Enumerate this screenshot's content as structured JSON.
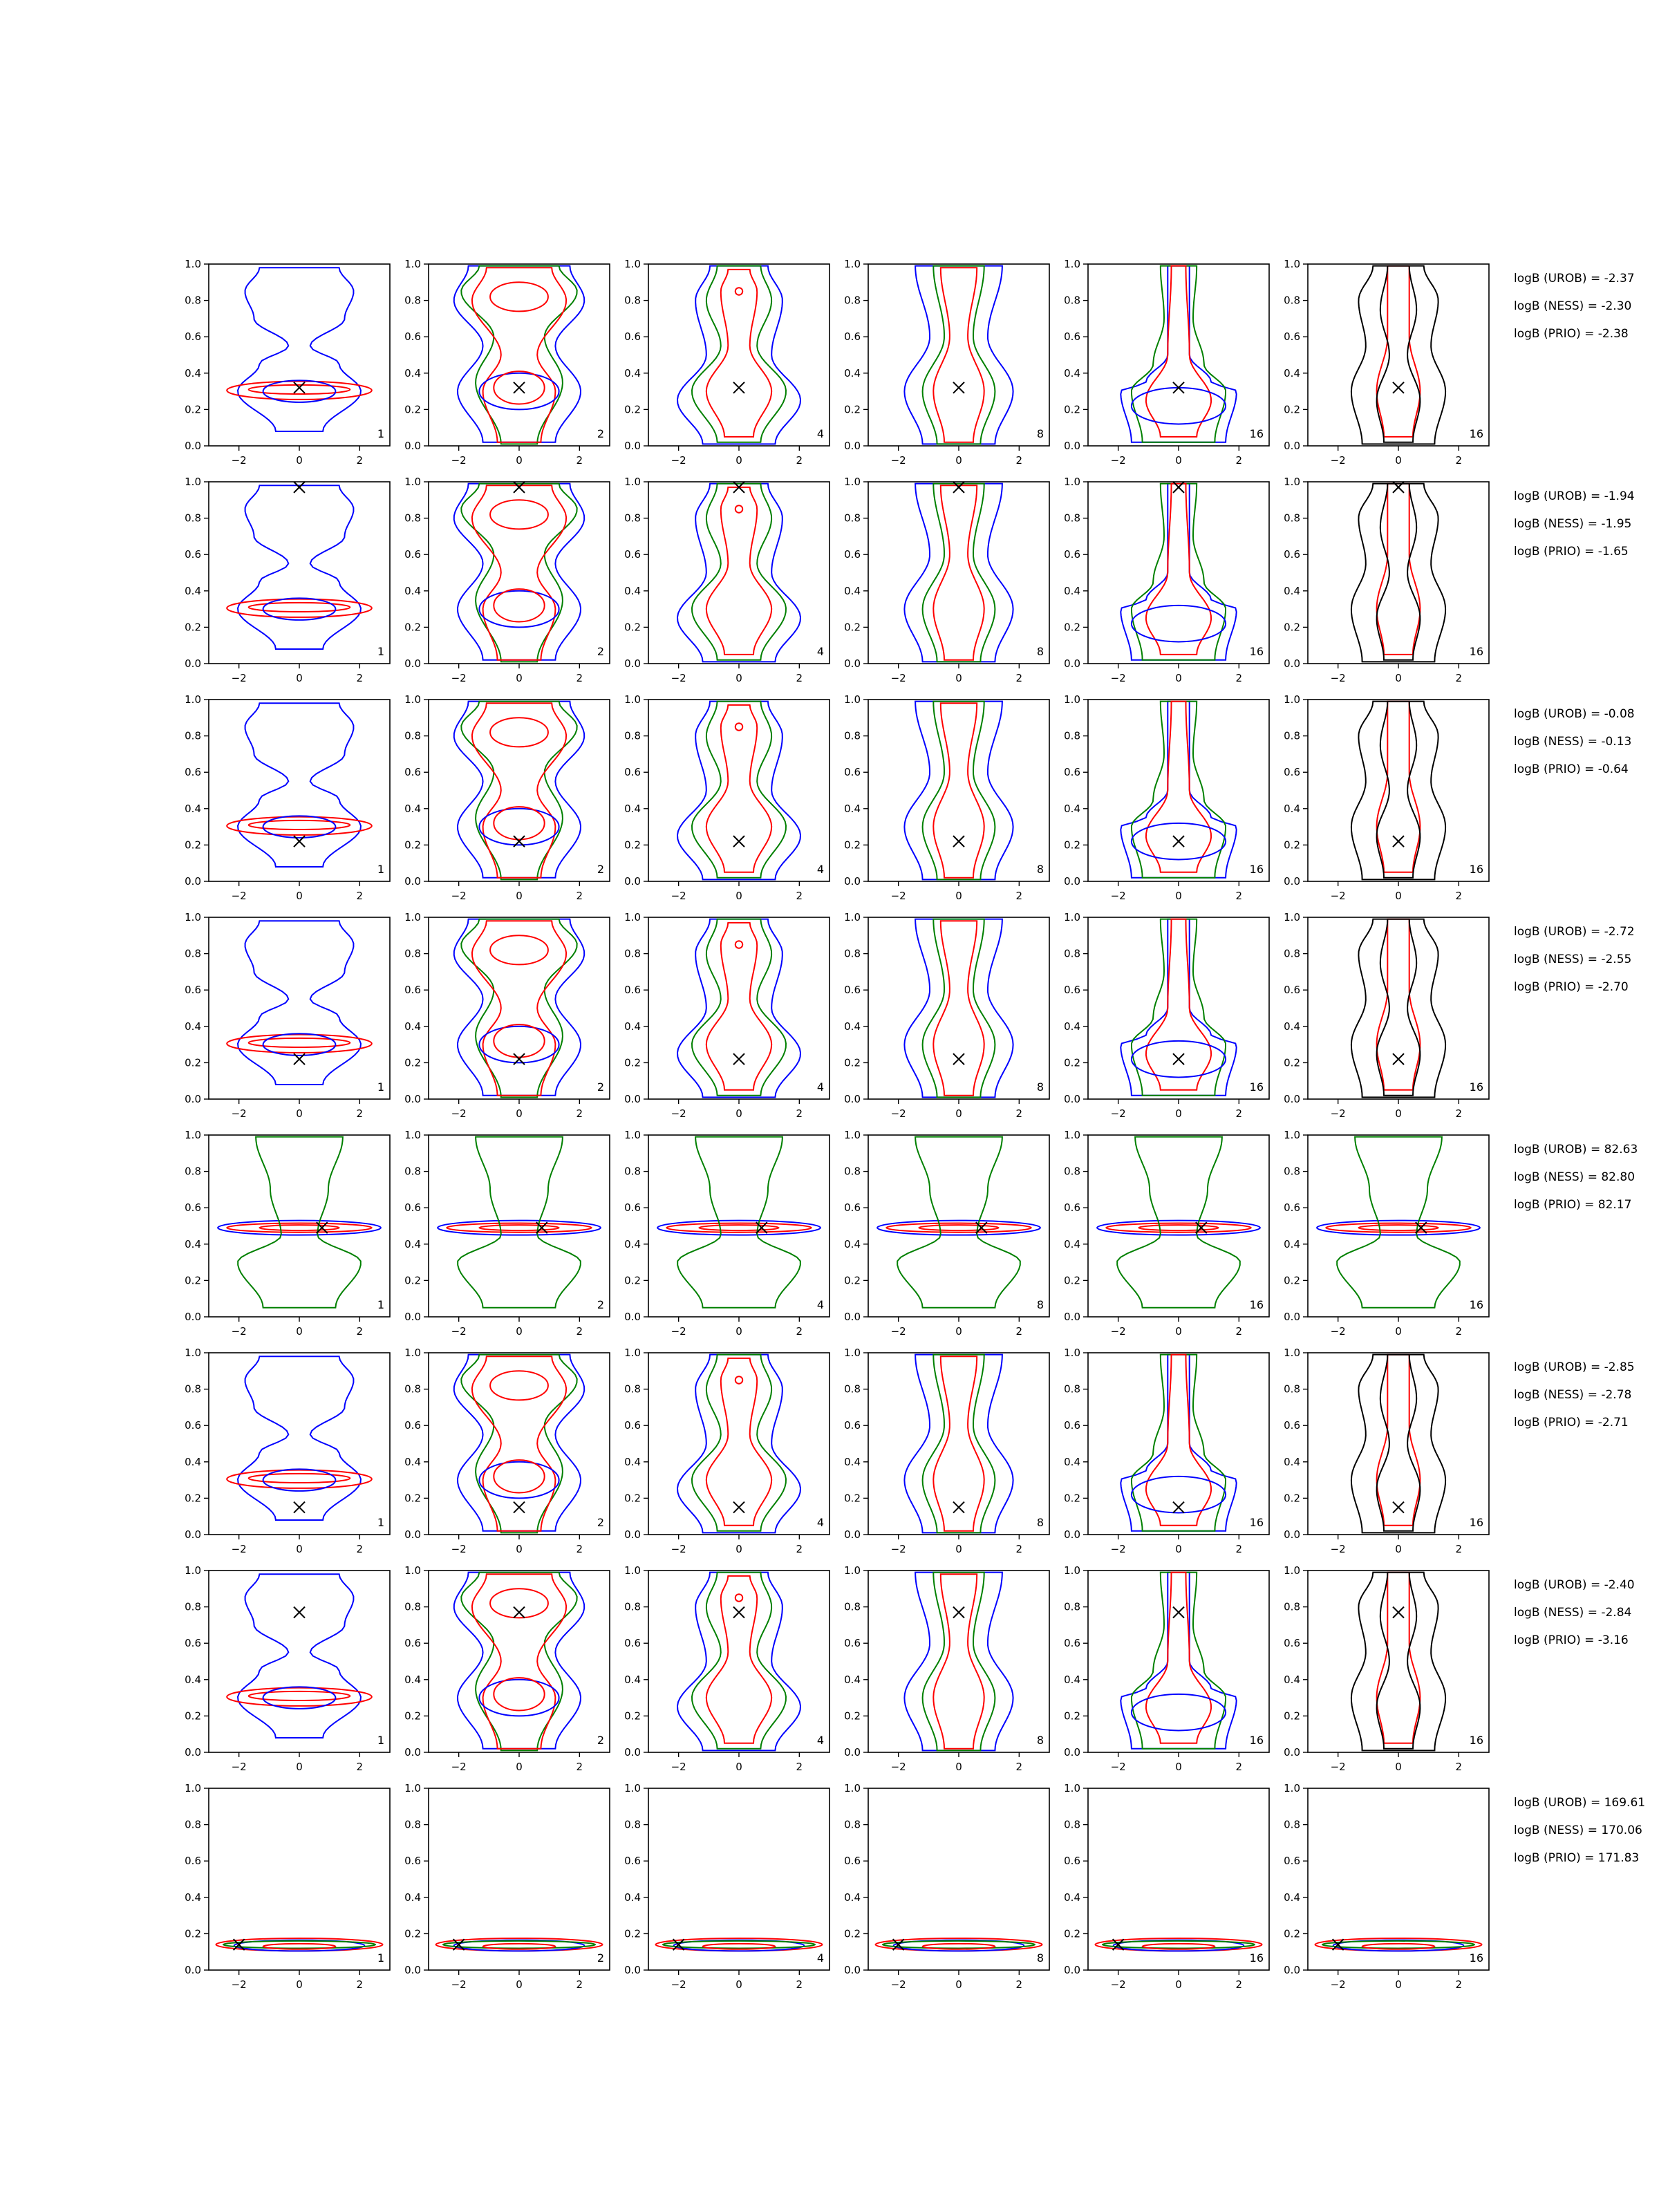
{
  "figure": {
    "x_ticks": [
      "−2",
      "0",
      "2"
    ],
    "y_ticks": [
      "0.0",
      "0.2",
      "0.4",
      "0.6",
      "0.8",
      "1.0"
    ],
    "column_labels": [
      "1",
      "2",
      "4",
      "8",
      "16",
      "16"
    ],
    "colors": {
      "blue": "#0000ff",
      "green": "#008000",
      "red": "#ff0000",
      "black": "#000000"
    }
  },
  "chart_data": [
    {
      "type": "contour",
      "row": 1,
      "xlim": [
        -3,
        3
      ],
      "ylim": [
        0,
        1
      ],
      "marker": {
        "x": 0,
        "y": 0.32
      },
      "logB": [
        "logB (UROB) = -2.37",
        "logB (NESS) = -2.30",
        "logB (PRIO) = -2.38"
      ]
    },
    {
      "type": "contour",
      "row": 2,
      "xlim": [
        -3,
        3
      ],
      "ylim": [
        0,
        1
      ],
      "marker": {
        "x": 0,
        "y": 0.97
      },
      "logB": [
        "logB (UROB) = -1.94",
        "logB (NESS) = -1.95",
        "logB (PRIO) = -1.65"
      ]
    },
    {
      "type": "contour",
      "row": 3,
      "xlim": [
        -3,
        3
      ],
      "ylim": [
        0,
        1
      ],
      "marker": {
        "x": 0,
        "y": 0.22
      },
      "logB": [
        "logB (UROB) = -0.08",
        "logB (NESS) = -0.13",
        "logB (PRIO) = -0.64"
      ]
    },
    {
      "type": "contour",
      "row": 4,
      "xlim": [
        -3,
        3
      ],
      "ylim": [
        0,
        1
      ],
      "marker": {
        "x": 0,
        "y": 0.22
      },
      "logB": [
        "logB (UROB) = -2.72",
        "logB (NESS) = -2.55",
        "logB (PRIO) = -2.70"
      ]
    },
    {
      "type": "contour",
      "row": 5,
      "xlim": [
        -3,
        3
      ],
      "ylim": [
        0,
        1
      ],
      "marker": {
        "x": 0.75,
        "y": 0.49
      },
      "logB": [
        "logB (UROB) = 82.63",
        "logB (NESS) = 82.80",
        "logB (PRIO) = 82.17"
      ]
    },
    {
      "type": "contour",
      "row": 6,
      "xlim": [
        -3,
        3
      ],
      "ylim": [
        0,
        1
      ],
      "marker": {
        "x": 0,
        "y": 0.15
      },
      "logB": [
        "logB (UROB) = -2.85",
        "logB (NESS) = -2.78",
        "logB (PRIO) = -2.71"
      ]
    },
    {
      "type": "contour",
      "row": 7,
      "xlim": [
        -3,
        3
      ],
      "ylim": [
        0,
        1
      ],
      "marker": {
        "x": 0,
        "y": 0.77
      },
      "logB": [
        "logB (UROB) = -2.40",
        "logB (NESS) = -2.84",
        "logB (PRIO) = -3.16"
      ]
    },
    {
      "type": "contour",
      "row": 8,
      "xlim": [
        -3,
        3
      ],
      "ylim": [
        0,
        1
      ],
      "marker": {
        "x": -2,
        "y": 0.14
      },
      "logB": [
        "logB (UROB) = 169.61",
        "logB (NESS) = 170.06",
        "logB (PRIO) = 171.83"
      ]
    }
  ]
}
